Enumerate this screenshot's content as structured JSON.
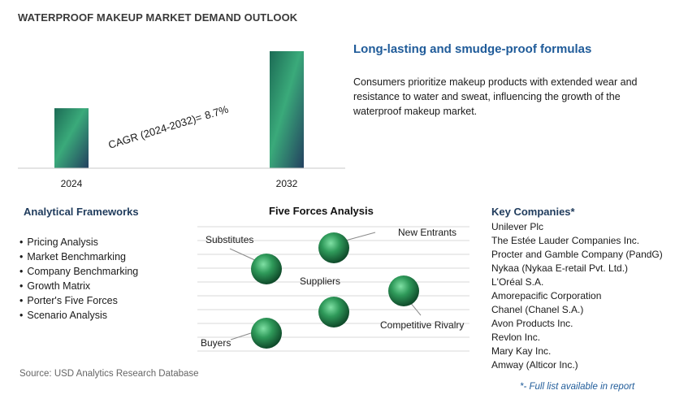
{
  "title": "WATERPROOF MAKEUP MARKET DEMAND OUTLOOK",
  "chart_data": {
    "type": "bar",
    "categories": [
      "2024",
      "2032"
    ],
    "values": [
      1.0,
      1.95
    ],
    "cagr_label": "CAGR (2024-2032)=",
    "cagr_value": "8.7%",
    "colors": [
      "#1c6b55",
      "#3aaa7a",
      "#23405f"
    ]
  },
  "highlight": {
    "heading": "Long-lasting and smudge-proof formulas",
    "text": "Consumers prioritize makeup products with extended wear and resistance to water and sweat, influencing the growth of the waterproof makeup market."
  },
  "frameworks": {
    "heading": "Analytical Frameworks",
    "items": [
      "Pricing Analysis",
      "Market Benchmarking",
      "Company Benchmarking",
      "Growth Matrix",
      "Porter's Five Forces",
      "Scenario Analysis"
    ]
  },
  "five_forces": {
    "title": "Five Forces Analysis",
    "labels": [
      "Substitutes",
      "New Entrants",
      "Suppliers",
      "Competitive Rivalry",
      "Buyers"
    ]
  },
  "companies": {
    "heading": "Key Companies*",
    "items": [
      "Unilever Plc",
      "The Estée Lauder Companies Inc.",
      "Procter and Gamble Company (PandG)",
      "Nykaa (Nykaa E-retail Pvt. Ltd.)",
      "L'Oréal S.A.",
      "Amorepacific Corporation",
      "Chanel (Chanel S.A.)",
      "Avon Products Inc.",
      "Revlon Inc.",
      "Mary Kay Inc.",
      "Amway (Alticor Inc.)"
    ]
  },
  "source": "Source: USD Analytics Research Database",
  "report_note": "*- Full list available in report"
}
